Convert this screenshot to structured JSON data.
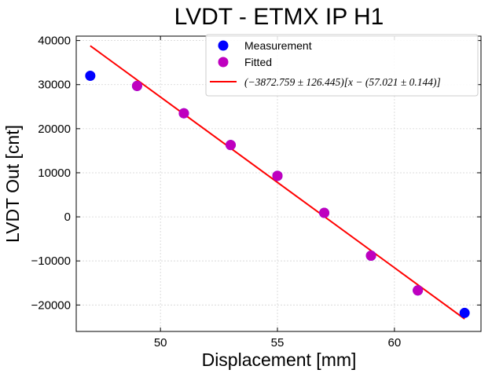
{
  "chart_data": {
    "type": "scatter",
    "title": "LVDT - ETMX IP H1",
    "xlabel": "Displacement [mm]",
    "ylabel": "LVDT Out [cnt]",
    "xlim": [
      46.4,
      63.7
    ],
    "ylim": [
      -26000,
      41000
    ],
    "xticks": [
      50,
      55,
      60
    ],
    "xtick_labels": [
      "50",
      "55",
      "60"
    ],
    "yticks": [
      -20000,
      -10000,
      0,
      10000,
      20000,
      30000,
      40000
    ],
    "ytick_labels": [
      "−20000",
      "−10000",
      "0",
      "10000",
      "20000",
      "30000",
      "40000"
    ],
    "grid": true,
    "legend_position": "top-right",
    "series": [
      {
        "name": "Measurement",
        "kind": "scatter",
        "color": "#0000ff",
        "x": [
          47,
          49,
          51,
          53,
          55,
          57,
          59,
          61,
          63
        ],
        "y": [
          32000,
          29700,
          23500,
          16300,
          9300,
          900,
          -8800,
          -16700,
          -21800
        ]
      },
      {
        "name": "Fitted",
        "kind": "scatter",
        "color": "#bf00bf",
        "x": [
          49,
          51,
          53,
          55,
          57,
          59,
          61
        ],
        "y": [
          29700,
          23500,
          16300,
          9300,
          900,
          -8800,
          -16700
        ]
      },
      {
        "name": "(−3872.759 ± 126.445)[x − (57.021 ± 0.144)]",
        "kind": "line",
        "color": "#ff0000",
        "slope": -3872.759,
        "slope_err": 126.445,
        "x0": 57.021,
        "x0_err": 0.144,
        "x": [
          47,
          63
        ],
        "y": [
          38805,
          -23159
        ]
      }
    ]
  }
}
